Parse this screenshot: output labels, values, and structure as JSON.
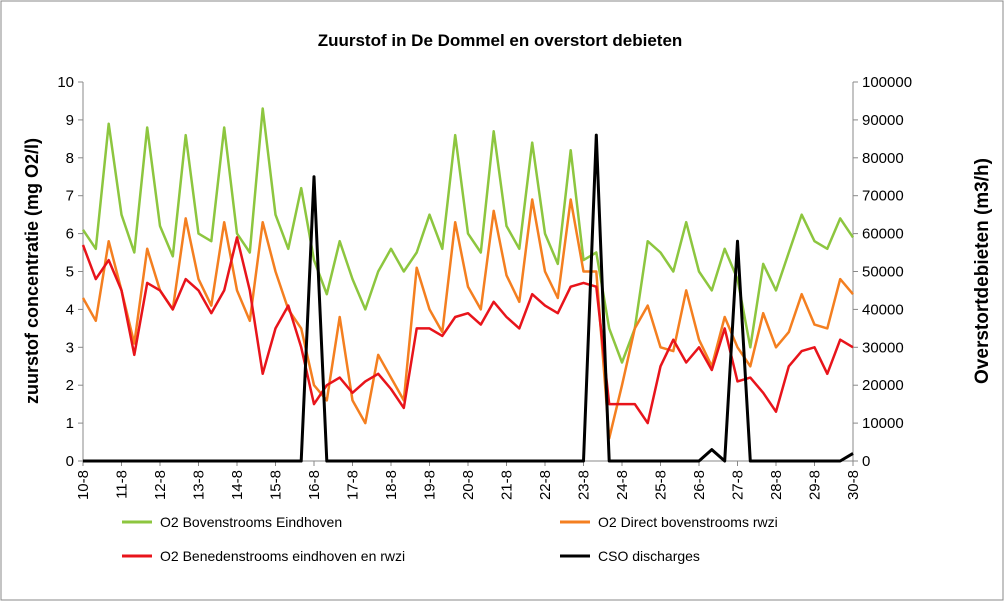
{
  "chart_data": {
    "type": "line",
    "title": "Zuurstof in De  Dommel en overstort debieten",
    "y_label": "zuurstof concentratie (mg O2/l)",
    "y2_label": "Overstortdebieten (m3/h)",
    "categories": [
      "10-8",
      null,
      null,
      "11-8",
      null,
      null,
      "12-8",
      null,
      null,
      "13-8",
      null,
      null,
      "14-8",
      null,
      null,
      "15-8",
      null,
      null,
      "16-8",
      null,
      null,
      "17-8",
      null,
      null,
      "18-8",
      null,
      null,
      "19-8",
      null,
      null,
      "20-8",
      null,
      null,
      "21-8",
      null,
      null,
      "22-8",
      null,
      null,
      "23-8",
      null,
      null,
      "24-8",
      null,
      null,
      "25-8",
      null,
      null,
      "26-8",
      null,
      null,
      "27-8",
      null,
      null,
      "28-8",
      null,
      null,
      "29-8",
      null,
      null,
      "30-8"
    ],
    "ylim": [
      0,
      10
    ],
    "yticks": [
      0,
      1,
      2,
      3,
      4,
      5,
      6,
      7,
      8,
      9,
      10
    ],
    "y2lim": [
      0,
      100000
    ],
    "y2ticks": [
      0,
      10000,
      20000,
      30000,
      40000,
      50000,
      60000,
      70000,
      80000,
      90000,
      100000
    ],
    "series": [
      {
        "name": "O2 Bovenstrooms Eindhoven",
        "color": "#8dc63f",
        "values": [
          6.1,
          5.6,
          8.9,
          6.5,
          5.5,
          8.8,
          6.2,
          5.4,
          8.6,
          6.0,
          5.8,
          8.8,
          6.0,
          5.5,
          9.3,
          6.5,
          5.6,
          7.2,
          5.3,
          4.4,
          5.8,
          4.8,
          4.0,
          5.0,
          5.6,
          5.0,
          5.5,
          6.5,
          5.6,
          8.6,
          6.0,
          5.5,
          8.7,
          6.2,
          5.6,
          8.4,
          6.0,
          5.2,
          8.2,
          5.3,
          5.5,
          3.5,
          2.6,
          3.5,
          5.8,
          5.5,
          5.0,
          6.3,
          5.0,
          4.5,
          5.6,
          4.8,
          3.0,
          5.2,
          4.5,
          5.5,
          6.5,
          5.8,
          5.6,
          6.4,
          5.9
        ]
      },
      {
        "name": "O2 Direct bovenstrooms rwzi",
        "color": "#f47f20",
        "values": [
          4.3,
          3.7,
          5.8,
          4.5,
          3.1,
          5.6,
          4.5,
          4.0,
          6.4,
          4.8,
          4.1,
          6.3,
          4.5,
          3.7,
          6.3,
          5.0,
          4.0,
          3.5,
          2.0,
          1.6,
          3.8,
          1.6,
          1.0,
          2.8,
          2.2,
          1.6,
          5.1,
          4.0,
          3.4,
          6.3,
          4.6,
          4.0,
          6.6,
          4.9,
          4.2,
          6.9,
          5.0,
          4.3,
          6.9,
          5.0,
          5.0,
          0.6,
          2.0,
          3.5,
          4.1,
          3.0,
          2.9,
          4.5,
          3.2,
          2.5,
          3.8,
          3.0,
          2.5,
          3.9,
          3.0,
          3.4,
          4.4,
          3.6,
          3.5,
          4.8,
          4.4
        ]
      },
      {
        "name": "O2 Benedenstrooms eindhoven en rwzi",
        "color": "#e8141b",
        "values": [
          5.7,
          4.8,
          5.3,
          4.5,
          2.8,
          4.7,
          4.5,
          4.0,
          4.8,
          4.5,
          3.9,
          4.5,
          5.9,
          4.5,
          2.3,
          3.5,
          4.1,
          3.0,
          1.5,
          2.0,
          2.2,
          1.8,
          2.1,
          2.3,
          1.9,
          1.4,
          3.5,
          3.5,
          3.3,
          3.8,
          3.9,
          3.6,
          4.2,
          3.8,
          3.5,
          4.4,
          4.1,
          3.9,
          4.6,
          4.7,
          4.6,
          1.5,
          1.5,
          1.5,
          1.0,
          2.5,
          3.2,
          2.6,
          3.0,
          2.4,
          3.5,
          2.1,
          2.2,
          1.8,
          1.3,
          2.5,
          2.9,
          3.0,
          2.3,
          3.2,
          3.0
        ]
      },
      {
        "name": "CSO discharges",
        "color": "#000000",
        "axis": "y2",
        "values": [
          0,
          0,
          0,
          0,
          0,
          0,
          0,
          0,
          0,
          0,
          0,
          0,
          0,
          0,
          0,
          0,
          0,
          0,
          75000,
          0,
          0,
          0,
          0,
          0,
          0,
          0,
          0,
          0,
          0,
          0,
          0,
          0,
          0,
          0,
          0,
          0,
          0,
          0,
          0,
          0,
          86000,
          0,
          0,
          0,
          0,
          0,
          0,
          0,
          0,
          3000,
          0,
          58000,
          0,
          0,
          0,
          0,
          0,
          0,
          0,
          0,
          2000
        ]
      }
    ]
  }
}
